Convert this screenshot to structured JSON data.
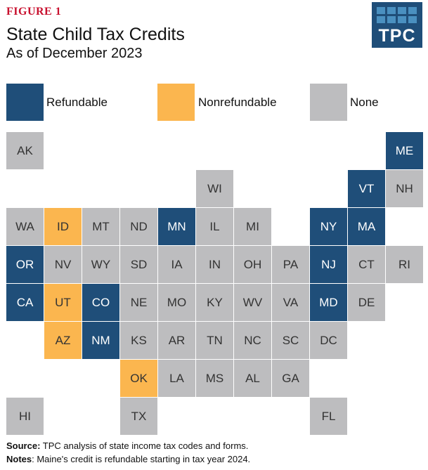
{
  "figure_label": "FIGURE 1",
  "title": "State Child Tax Credits",
  "subtitle": "As of December 2023",
  "logo_text": "TPC",
  "colors": {
    "refundable": "#1f4e79",
    "nonrefundable": "#fbb64f",
    "none": "#bdbdbf",
    "refundable_text": "#ffffff",
    "nonrefundable_text": "#333333",
    "none_text": "#333333"
  },
  "legend": [
    {
      "key": "refundable",
      "label": "Refundable"
    },
    {
      "key": "nonrefundable",
      "label": "Nonrefundable"
    },
    {
      "key": "none",
      "label": "None"
    }
  ],
  "states": [
    {
      "abbr": "AK",
      "category": "none",
      "row": 0,
      "col": 0
    },
    {
      "abbr": "ME",
      "category": "refundable",
      "row": 0,
      "col": 10
    },
    {
      "abbr": "WI",
      "category": "none",
      "row": 1,
      "col": 5
    },
    {
      "abbr": "VT",
      "category": "refundable",
      "row": 1,
      "col": 9
    },
    {
      "abbr": "NH",
      "category": "none",
      "row": 1,
      "col": 10
    },
    {
      "abbr": "WA",
      "category": "none",
      "row": 2,
      "col": 0
    },
    {
      "abbr": "ID",
      "category": "nonrefundable",
      "row": 2,
      "col": 1
    },
    {
      "abbr": "MT",
      "category": "none",
      "row": 2,
      "col": 2
    },
    {
      "abbr": "ND",
      "category": "none",
      "row": 2,
      "col": 3
    },
    {
      "abbr": "MN",
      "category": "refundable",
      "row": 2,
      "col": 4
    },
    {
      "abbr": "IL",
      "category": "none",
      "row": 2,
      "col": 5
    },
    {
      "abbr": "MI",
      "category": "none",
      "row": 2,
      "col": 6
    },
    {
      "abbr": "NY",
      "category": "refundable",
      "row": 2,
      "col": 8
    },
    {
      "abbr": "MA",
      "category": "refundable",
      "row": 2,
      "col": 9
    },
    {
      "abbr": "OR",
      "category": "refundable",
      "row": 3,
      "col": 0
    },
    {
      "abbr": "NV",
      "category": "none",
      "row": 3,
      "col": 1
    },
    {
      "abbr": "WY",
      "category": "none",
      "row": 3,
      "col": 2
    },
    {
      "abbr": "SD",
      "category": "none",
      "row": 3,
      "col": 3
    },
    {
      "abbr": "IA",
      "category": "none",
      "row": 3,
      "col": 4
    },
    {
      "abbr": "IN",
      "category": "none",
      "row": 3,
      "col": 5
    },
    {
      "abbr": "OH",
      "category": "none",
      "row": 3,
      "col": 6
    },
    {
      "abbr": "PA",
      "category": "none",
      "row": 3,
      "col": 7
    },
    {
      "abbr": "NJ",
      "category": "refundable",
      "row": 3,
      "col": 8
    },
    {
      "abbr": "CT",
      "category": "none",
      "row": 3,
      "col": 9
    },
    {
      "abbr": "RI",
      "category": "none",
      "row": 3,
      "col": 10
    },
    {
      "abbr": "CA",
      "category": "refundable",
      "row": 4,
      "col": 0
    },
    {
      "abbr": "UT",
      "category": "nonrefundable",
      "row": 4,
      "col": 1
    },
    {
      "abbr": "CO",
      "category": "refundable",
      "row": 4,
      "col": 2
    },
    {
      "abbr": "NE",
      "category": "none",
      "row": 4,
      "col": 3
    },
    {
      "abbr": "MO",
      "category": "none",
      "row": 4,
      "col": 4
    },
    {
      "abbr": "KY",
      "category": "none",
      "row": 4,
      "col": 5
    },
    {
      "abbr": "WV",
      "category": "none",
      "row": 4,
      "col": 6
    },
    {
      "abbr": "VA",
      "category": "none",
      "row": 4,
      "col": 7
    },
    {
      "abbr": "MD",
      "category": "refundable",
      "row": 4,
      "col": 8
    },
    {
      "abbr": "DE",
      "category": "none",
      "row": 4,
      "col": 9
    },
    {
      "abbr": "AZ",
      "category": "nonrefundable",
      "row": 5,
      "col": 1
    },
    {
      "abbr": "NM",
      "category": "refundable",
      "row": 5,
      "col": 2
    },
    {
      "abbr": "KS",
      "category": "none",
      "row": 5,
      "col": 3
    },
    {
      "abbr": "AR",
      "category": "none",
      "row": 5,
      "col": 4
    },
    {
      "abbr": "TN",
      "category": "none",
      "row": 5,
      "col": 5
    },
    {
      "abbr": "NC",
      "category": "none",
      "row": 5,
      "col": 6
    },
    {
      "abbr": "SC",
      "category": "none",
      "row": 5,
      "col": 7
    },
    {
      "abbr": "DC",
      "category": "none",
      "row": 5,
      "col": 8
    },
    {
      "abbr": "OK",
      "category": "nonrefundable",
      "row": 6,
      "col": 3
    },
    {
      "abbr": "LA",
      "category": "none",
      "row": 6,
      "col": 4
    },
    {
      "abbr": "MS",
      "category": "none",
      "row": 6,
      "col": 5
    },
    {
      "abbr": "AL",
      "category": "none",
      "row": 6,
      "col": 6
    },
    {
      "abbr": "GA",
      "category": "none",
      "row": 6,
      "col": 7
    },
    {
      "abbr": "HI",
      "category": "none",
      "row": 7,
      "col": 0
    },
    {
      "abbr": "TX",
      "category": "none",
      "row": 7,
      "col": 3
    },
    {
      "abbr": "FL",
      "category": "none",
      "row": 7,
      "col": 8
    }
  ],
  "footer": {
    "source_label": "Source:",
    "source_text": " TPC analysis of state income tax codes and forms.",
    "notes_label": "Notes",
    "notes_text": ": Maine's credit is refundable starting in tax year 2024."
  }
}
